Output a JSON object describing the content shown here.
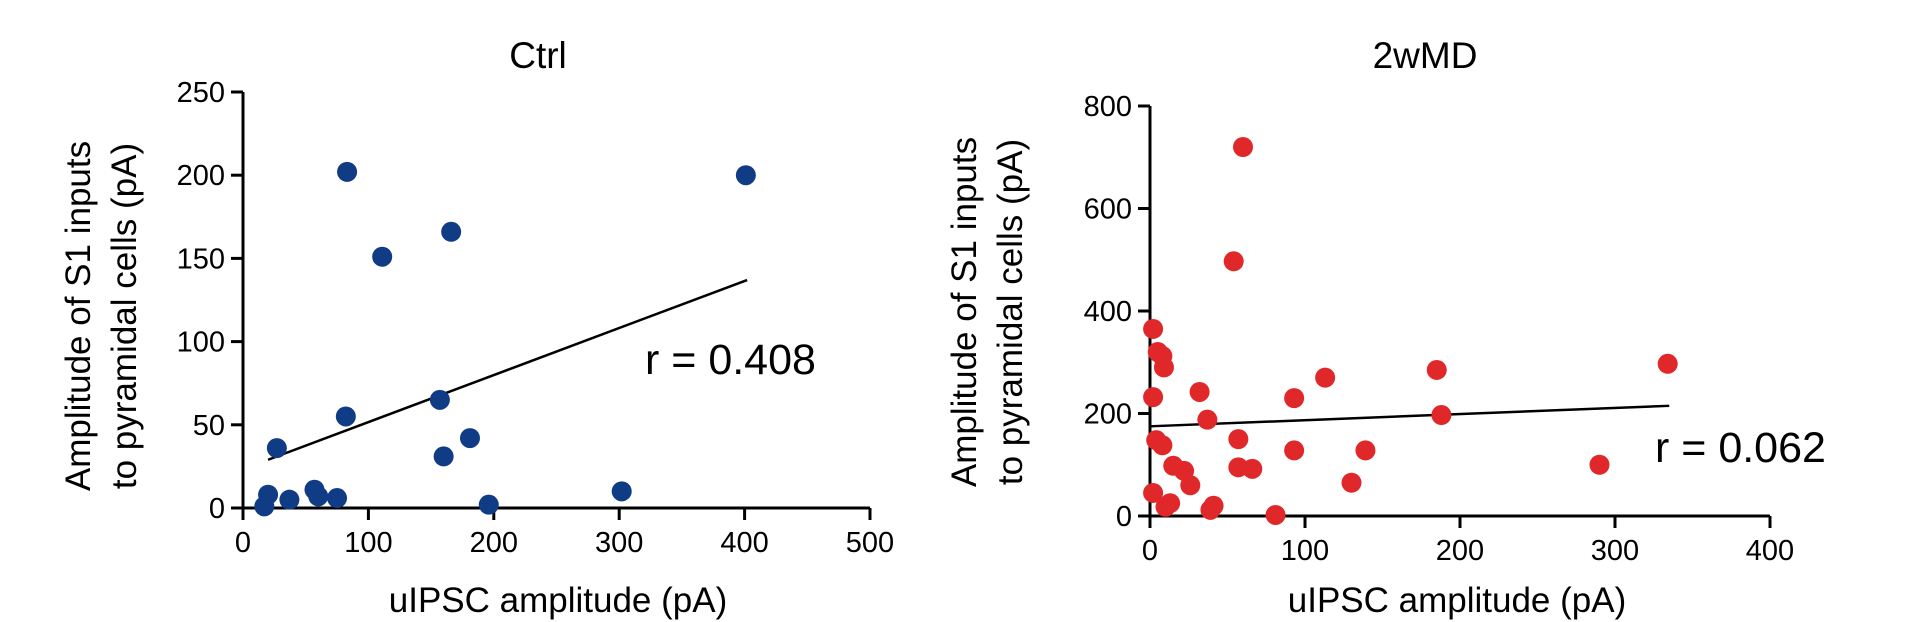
{
  "chart_data": [
    {
      "type": "scatter",
      "title": "Ctrl",
      "xlabel": "uIPSC amplitude (pA)",
      "ylabel": [
        "Amplitude of S1 inputs",
        "to pyramidal cells (pA)"
      ],
      "xlim": [
        0,
        500
      ],
      "ylim": [
        0,
        250
      ],
      "xticks": [
        "0",
        "100",
        "200",
        "300",
        "400",
        "500"
      ],
      "yticks": [
        "0",
        "50",
        "100",
        "150",
        "200",
        "250"
      ],
      "color": "#0f3c85",
      "annotation": "r = 0.408",
      "fit": {
        "x": [
          20,
          402
        ],
        "y": [
          29,
          137
        ]
      },
      "points": [
        {
          "x": 17,
          "y": 1
        },
        {
          "x": 20,
          "y": 8
        },
        {
          "x": 27,
          "y": 36
        },
        {
          "x": 37,
          "y": 5
        },
        {
          "x": 57,
          "y": 11
        },
        {
          "x": 60,
          "y": 7
        },
        {
          "x": 75,
          "y": 6
        },
        {
          "x": 82,
          "y": 55
        },
        {
          "x": 83,
          "y": 202
        },
        {
          "x": 111,
          "y": 151
        },
        {
          "x": 157,
          "y": 65
        },
        {
          "x": 160,
          "y": 31
        },
        {
          "x": 166,
          "y": 166
        },
        {
          "x": 181,
          "y": 42
        },
        {
          "x": 196,
          "y": 2
        },
        {
          "x": 302,
          "y": 10
        },
        {
          "x": 401,
          "y": 200
        }
      ]
    },
    {
      "type": "scatter",
      "title": "2wMD",
      "xlabel": "uIPSC amplitude (pA)",
      "ylabel": [
        "Amplitude of S1 inputs",
        "to pyramidal cells (pA)"
      ],
      "xlim": [
        0,
        400
      ],
      "ylim": [
        0,
        800
      ],
      "xticks": [
        "0",
        "100",
        "200",
        "300",
        "400"
      ],
      "yticks": [
        "0",
        "200",
        "400",
        "600",
        "800"
      ],
      "color": "#e0282a",
      "annotation": "r = 0.062",
      "fit": {
        "x": [
          0,
          335
        ],
        "y": [
          175,
          215
        ]
      },
      "points": [
        {
          "x": 2,
          "y": 365
        },
        {
          "x": 2,
          "y": 232
        },
        {
          "x": 2,
          "y": 45
        },
        {
          "x": 4,
          "y": 148
        },
        {
          "x": 5,
          "y": 320
        },
        {
          "x": 8,
          "y": 312
        },
        {
          "x": 8,
          "y": 138
        },
        {
          "x": 9,
          "y": 290
        },
        {
          "x": 10,
          "y": 18
        },
        {
          "x": 13,
          "y": 25
        },
        {
          "x": 15,
          "y": 98
        },
        {
          "x": 22,
          "y": 88
        },
        {
          "x": 26,
          "y": 60
        },
        {
          "x": 32,
          "y": 242
        },
        {
          "x": 37,
          "y": 188
        },
        {
          "x": 39,
          "y": 12
        },
        {
          "x": 41,
          "y": 20
        },
        {
          "x": 54,
          "y": 497
        },
        {
          "x": 57,
          "y": 150
        },
        {
          "x": 57,
          "y": 95
        },
        {
          "x": 60,
          "y": 720
        },
        {
          "x": 66,
          "y": 92
        },
        {
          "x": 81,
          "y": 2
        },
        {
          "x": 93,
          "y": 230
        },
        {
          "x": 93,
          "y": 128
        },
        {
          "x": 113,
          "y": 270
        },
        {
          "x": 130,
          "y": 65
        },
        {
          "x": 139,
          "y": 128
        },
        {
          "x": 185,
          "y": 285
        },
        {
          "x": 188,
          "y": 197
        },
        {
          "x": 290,
          "y": 100
        },
        {
          "x": 334,
          "y": 297
        }
      ]
    }
  ]
}
